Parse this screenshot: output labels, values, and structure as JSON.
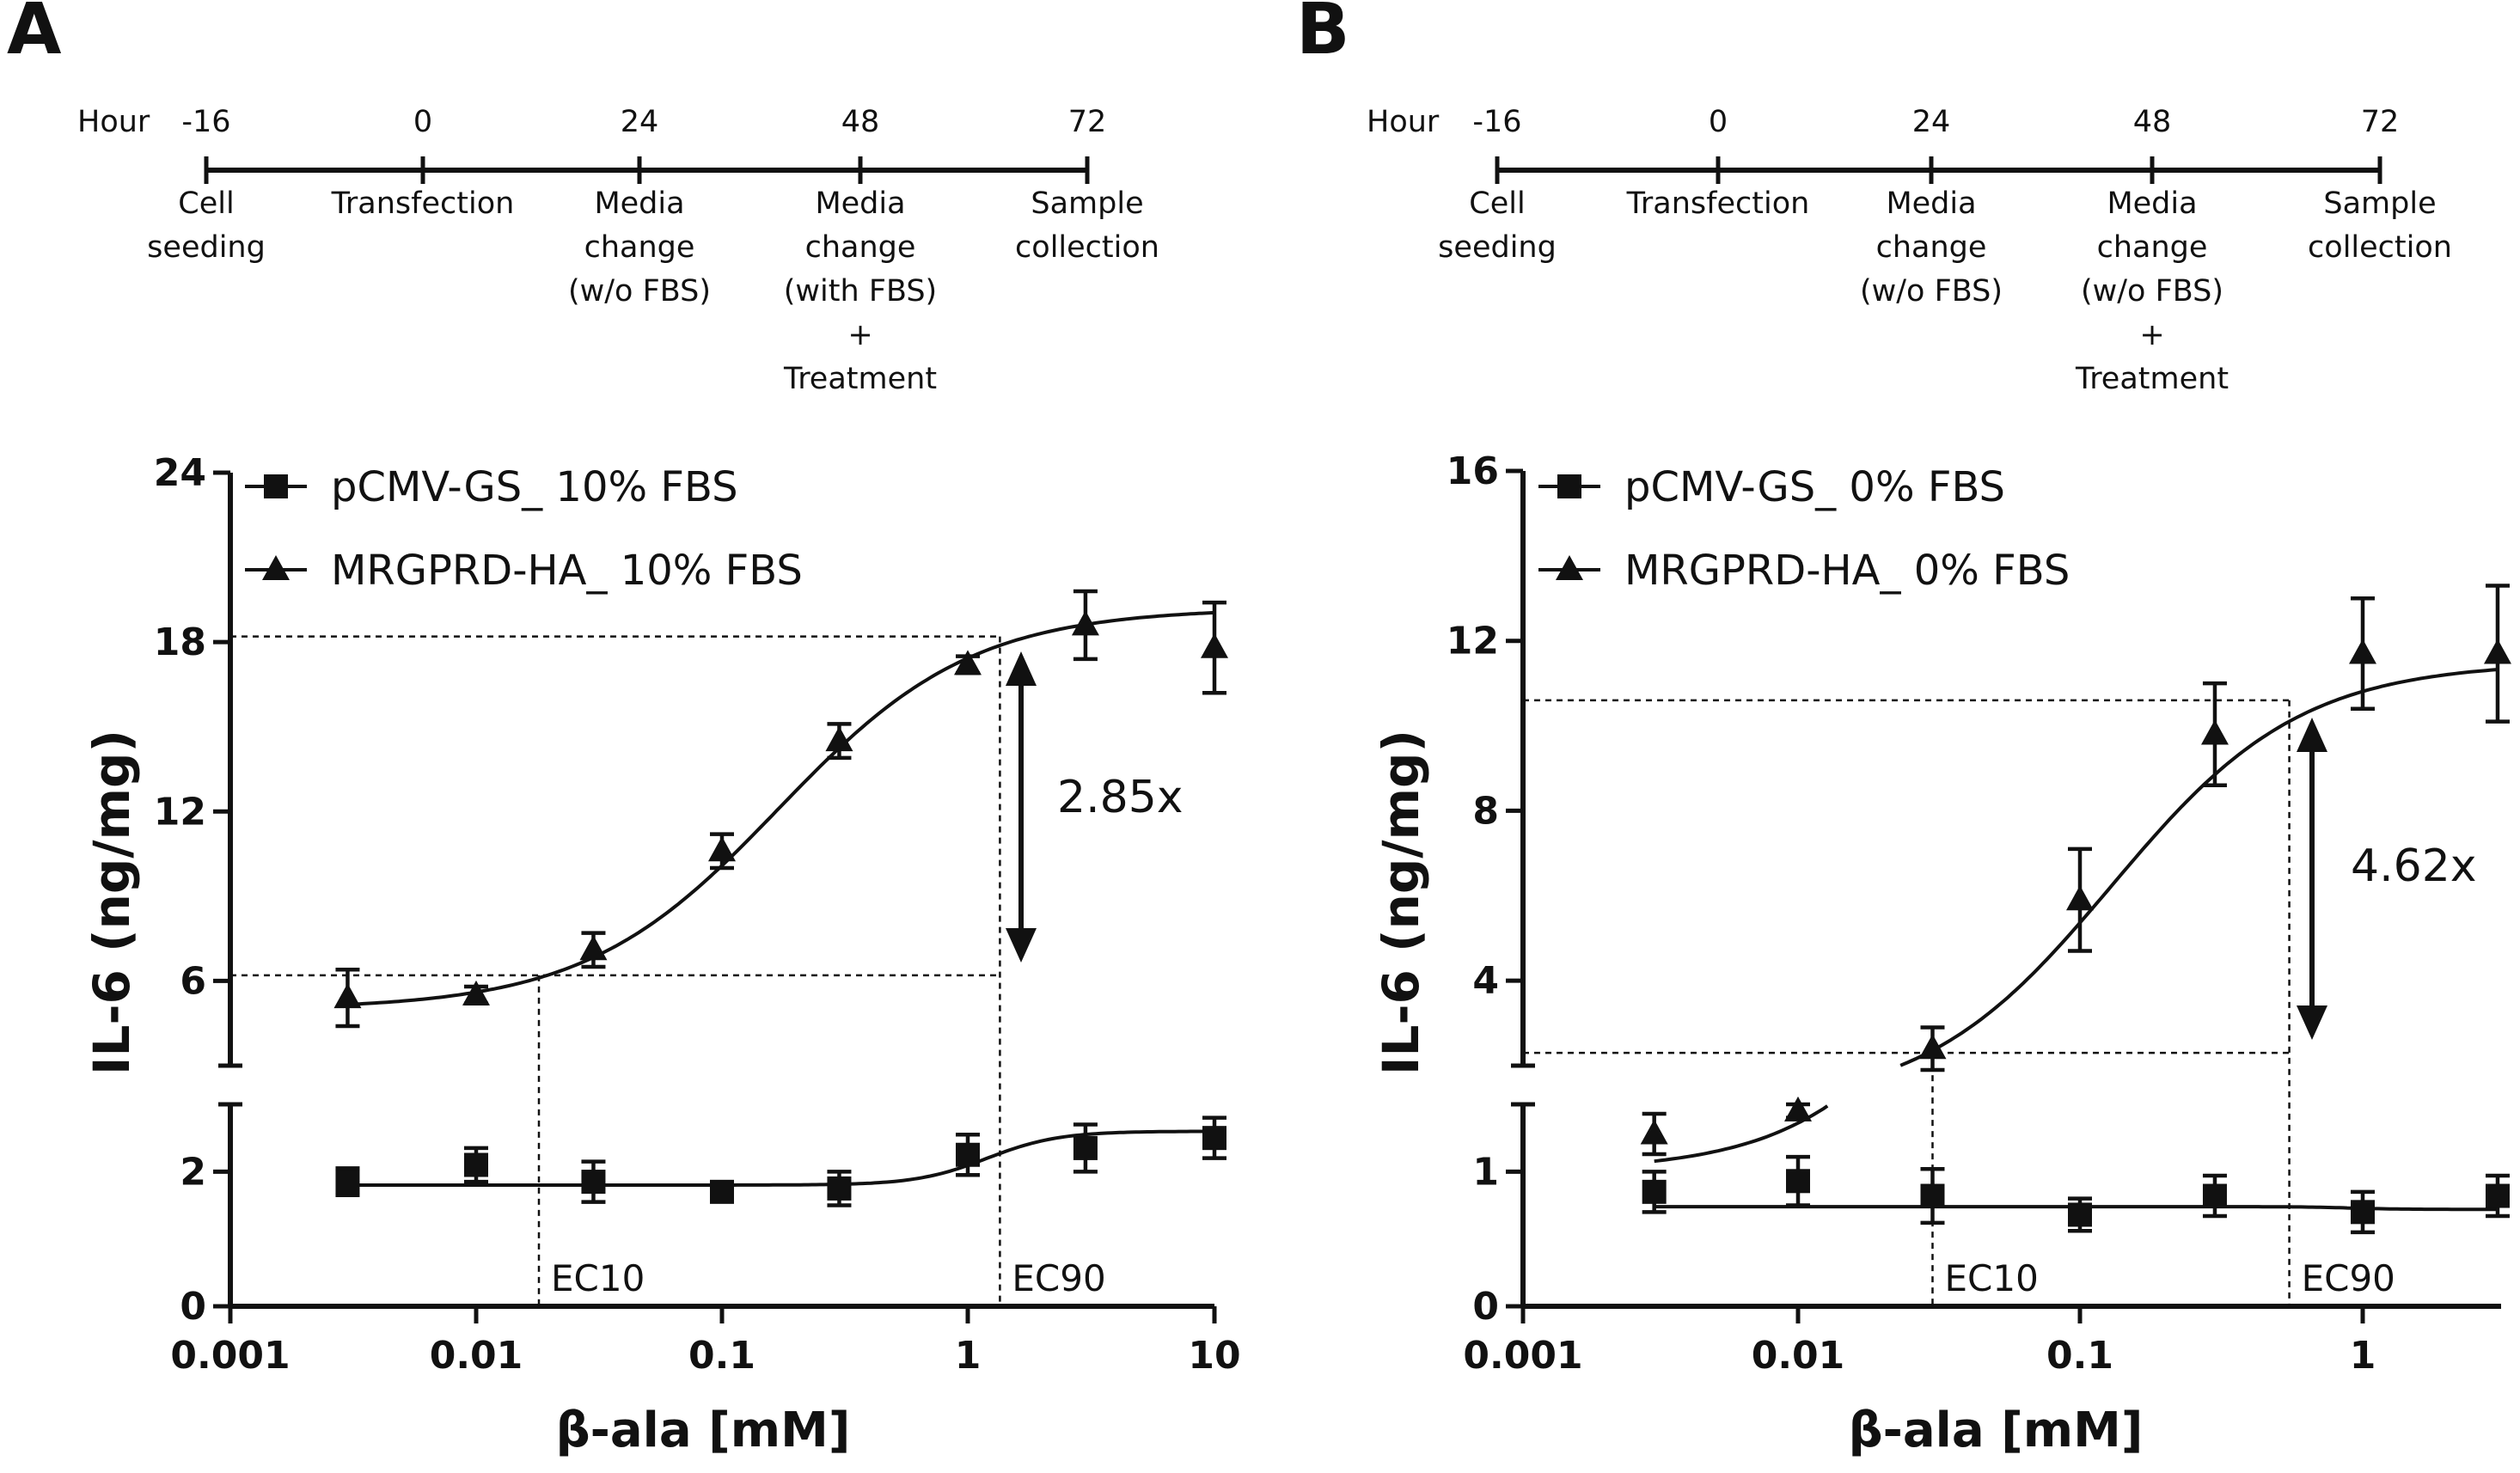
{
  "panels": [
    {
      "letter": "A",
      "timeline": {
        "hour_label": "Hour",
        "hours": [
          "-16",
          "0",
          "24",
          "48",
          "72"
        ],
        "events": [
          [
            "Cell",
            "seeding"
          ],
          [
            "Transfection"
          ],
          [
            "Media",
            "change",
            "(w/o FBS)"
          ],
          [
            "Media",
            "change",
            "(with FBS)",
            "+",
            "Treatment"
          ],
          [
            "Sample",
            "collection"
          ]
        ]
      },
      "fold_label": "2.85x",
      "ec10_label": "EC10",
      "ec90_label": "EC90"
    },
    {
      "letter": "B",
      "timeline": {
        "hour_label": "Hour",
        "hours": [
          "-16",
          "0",
          "24",
          "48",
          "72"
        ],
        "events": [
          [
            "Cell",
            "seeding"
          ],
          [
            "Transfection"
          ],
          [
            "Media",
            "change",
            "(w/o FBS)"
          ],
          [
            "Media",
            "change",
            "(w/o FBS)",
            "+",
            "Treatment"
          ],
          [
            "Sample",
            "collection"
          ]
        ]
      },
      "fold_label": "4.62x",
      "ec10_label": "EC10",
      "ec90_label": "EC90"
    }
  ],
  "chart_data": [
    {
      "type": "scatter",
      "panel": "A",
      "title": "",
      "xlabel": "β-ala [mM]",
      "ylabel": "IL-6 (ng/mg)",
      "x_scale": "log",
      "xlim": [
        0.001,
        10
      ],
      "x_ticks": [
        0.001,
        0.01,
        0.1,
        1,
        10
      ],
      "x_tick_labels": [
        "0.001",
        "0.01",
        "0.1",
        "1",
        "10"
      ],
      "y_broken": true,
      "ylim_upper": [
        3,
        24
      ],
      "y_ticks_upper": [
        6,
        12,
        18,
        24
      ],
      "y_tick_labels_upper": [
        "6",
        "12",
        "18",
        "24"
      ],
      "ylim_lower": [
        0,
        3
      ],
      "y_ticks_lower": [
        0,
        2
      ],
      "y_tick_labels_lower": [
        "0",
        "2"
      ],
      "legend_position": "top-left",
      "series": [
        {
          "name": "pCMV-GS_ 10% FBS",
          "marker": "square",
          "x": [
            0.003,
            0.01,
            0.03,
            0.1,
            0.3,
            1,
            3,
            10
          ],
          "y": [
            1.85,
            2.1,
            1.85,
            1.7,
            1.75,
            2.25,
            2.35,
            2.5
          ],
          "error": [
            0.2,
            0.25,
            0.3,
            0.1,
            0.25,
            0.3,
            0.35,
            0.3
          ],
          "fit": {
            "bottom": 1.8,
            "top": 2.6,
            "ec50": 1.2,
            "hill": 3
          }
        },
        {
          "name": "MRGPRD-HA_ 10% FBS",
          "marker": "triangle",
          "x": [
            0.003,
            0.01,
            0.03,
            0.1,
            0.3,
            1,
            3,
            10
          ],
          "y": [
            5.4,
            5.5,
            7.1,
            10.6,
            14.5,
            17.2,
            18.6,
            17.8
          ],
          "error": [
            1.0,
            0.3,
            0.6,
            0.6,
            0.6,
            0.3,
            1.2,
            1.6
          ],
          "fit": {
            "bottom": 5.0,
            "top": 19.2,
            "ec50": 0.17,
            "hill": 1.1
          }
        }
      ],
      "reference_lines": {
        "ec10_x": 0.018,
        "ec90_x": 1.35,
        "ec10_y": 6.2,
        "ec90_y": 18.2
      },
      "fold_change": "2.85x"
    },
    {
      "type": "scatter",
      "panel": "B",
      "title": "",
      "xlabel": "β-ala [mM]",
      "ylabel": "IL-6 (ng/mg)",
      "x_scale": "log",
      "xlim": [
        0.001,
        3
      ],
      "x_ticks": [
        0.001,
        0.01,
        0.1,
        1
      ],
      "x_tick_labels": [
        "0.001",
        "0.01",
        "0.1",
        "1"
      ],
      "y_broken": true,
      "ylim_upper": [
        2,
        16
      ],
      "y_ticks_upper": [
        4,
        8,
        12,
        16
      ],
      "y_tick_labels_upper": [
        "4",
        "8",
        "12",
        "16"
      ],
      "ylim_lower": [
        0,
        1.5
      ],
      "y_ticks_lower": [
        0,
        1
      ],
      "y_tick_labels_lower": [
        "0",
        "1"
      ],
      "legend_position": "top-left",
      "series": [
        {
          "name": "pCMV-GS_ 0% FBS",
          "marker": "square",
          "x": [
            0.003,
            0.01,
            0.03,
            0.1,
            0.3,
            1,
            3
          ],
          "y": [
            0.85,
            0.93,
            0.82,
            0.68,
            0.82,
            0.7,
            0.82
          ],
          "error": [
            0.15,
            0.18,
            0.2,
            0.12,
            0.15,
            0.15,
            0.15
          ],
          "fit": {
            "bottom": 0.74,
            "top": 0.72,
            "ec50": 0.9,
            "hill": 5
          }
        },
        {
          "name": "MRGPRD-HA_ 0% FBS",
          "marker": "triangle",
          "x": [
            0.003,
            0.01,
            0.03,
            0.1,
            0.3,
            1,
            3
          ],
          "y": [
            1.28,
            1.45,
            2.4,
            5.9,
            9.8,
            11.7,
            11.7
          ],
          "error": [
            0.15,
            0.05,
            0.5,
            1.2,
            1.2,
            1.3,
            1.6
          ],
          "fit": {
            "bottom": 1.0,
            "top": 11.5,
            "ec50": 0.13,
            "hill": 1.3
          }
        }
      ],
      "reference_lines": {
        "ec10_x": 0.03,
        "ec90_x": 0.55,
        "ec10_y": 2.3,
        "ec90_y": 10.6
      },
      "fold_change": "4.62x"
    }
  ]
}
